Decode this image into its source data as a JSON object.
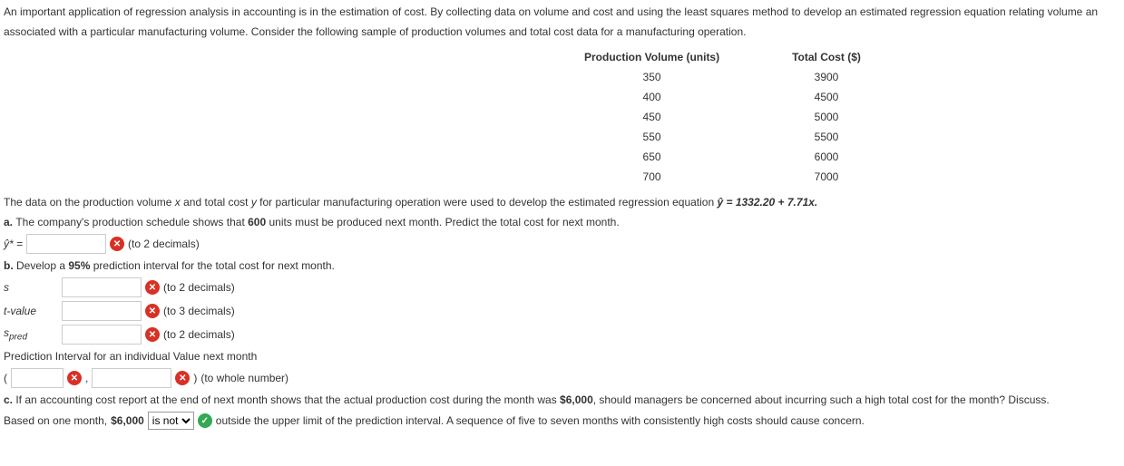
{
  "intro1": "An important application of regression analysis in accounting is in the estimation of cost. By collecting data on volume and cost and using the least squares method to develop an estimated regression equation relating volume an",
  "intro2": "associated with a particular manufacturing volume. Consider the following sample of production volumes and total cost data for a manufacturing operation.",
  "table": {
    "h1": "Production Volume (units)",
    "h2": "Total Cost ($)",
    "r": [
      [
        "350",
        "3900"
      ],
      [
        "400",
        "4500"
      ],
      [
        "450",
        "5000"
      ],
      [
        "550",
        "5500"
      ],
      [
        "650",
        "6000"
      ],
      [
        "700",
        "7000"
      ]
    ]
  },
  "line_eq_pre": "The data on the production volume ",
  "line_eq_mid1": " and total cost ",
  "line_eq_mid2": " for particular manufacturing operation were used to develop the estimated regression equation ",
  "line_eq_yhat": "ŷ = 1332.20 + 7.71x.",
  "a_line_pre": "a. ",
  "a_line": "The company's production schedule shows that 600 units must be produced next month. Predict the total cost for next month.",
  "a_units": "600",
  "yhat_label": "ŷ* =",
  "to2": "(to 2 decimals)",
  "to3": "(to 3 decimals)",
  "towhole": "(to whole number)",
  "b_line_pre": "b. ",
  "b_line": "Develop a 95% prediction interval for the total cost for next month.",
  "b_pct": "95%",
  "s_label": "s",
  "t_label": "t-value",
  "spred_label": "spred",
  "pred_int_line": "Prediction Interval for an individual Value next month",
  "paren_open": "(",
  "comma": ",",
  "paren_close": ")",
  "c_line_pre": "c. ",
  "c_line": "If an accounting cost report at the end of next month shows that the actual production cost during the month was $6,000, should managers be concerned about incurring such a high total cost for the month? Discuss.",
  "c_cost": "$6,000",
  "final_pre": "Based on one month, ",
  "final_cost": "$6,000",
  "dropdown_val": "is not",
  "final_post": " outside the upper limit of the prediction interval. A sequence of five to seven months with consistently high costs should cause concern."
}
